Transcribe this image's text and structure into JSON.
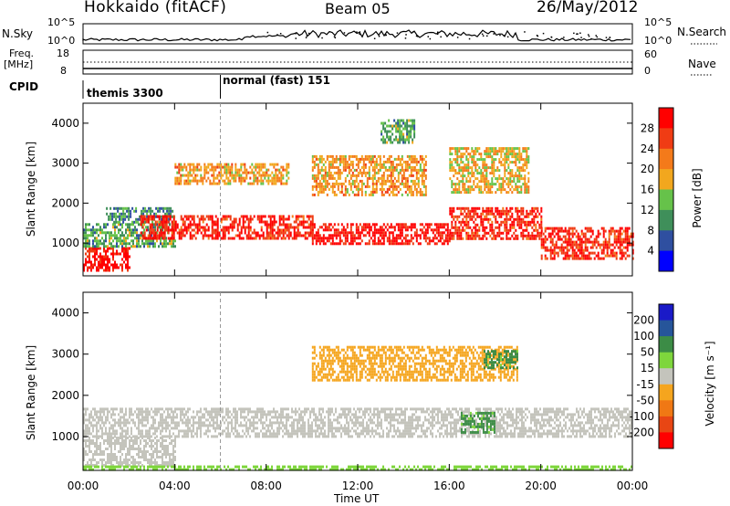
{
  "header": {
    "station": "Hokkaido (fitACF)",
    "beam": "Beam 05",
    "date": "26/May/2012"
  },
  "summary_panel": {
    "nsky_label": "N.Sky",
    "nsky_ticks": [
      "10^5",
      "10^0"
    ],
    "nsearch_label": "N.Search",
    "nsearch_ticks": [
      "10^5",
      "10^0"
    ],
    "freq_label": "Freq.",
    "freq_unit": "[MHz]",
    "freq_ticks": [
      "18",
      "8"
    ],
    "nave_label": "Nave",
    "nave_ticks": [
      "60",
      "0"
    ],
    "cpid_label": "CPID",
    "cpid_modes": [
      {
        "name": "themis 3300",
        "start_hour": 0
      },
      {
        "name": "normal (fast) 151",
        "start_hour": 6
      }
    ]
  },
  "colors": {
    "power_scale": [
      "#0000ff",
      "#2f4fa0",
      "#3f8f5a",
      "#66c24a",
      "#f2a71e",
      "#f47a1a",
      "#f03c14",
      "#ff0000"
    ],
    "velocity_scale": [
      "#1a1ac8",
      "#26559a",
      "#3c8c46",
      "#7ed63c",
      "#c4c4bc",
      "#f5a51e",
      "#f07814",
      "#e84614",
      "#ff0000"
    ]
  },
  "chart_data": [
    {
      "type": "heatmap",
      "title": "",
      "xlabel": "Time UT",
      "ylabel": "Slant Range [km]",
      "xlim": [
        0,
        24
      ],
      "ylim": [
        180,
        4500
      ],
      "x_ticks": [
        "00:00",
        "04:00",
        "08:00",
        "12:00",
        "16:00",
        "20:00",
        "00:00"
      ],
      "y_ticks": [
        1000,
        2000,
        3000,
        4000
      ],
      "colorbar": {
        "label": "Power [dB]",
        "range": [
          0,
          32
        ],
        "ticks": [
          4,
          8,
          12,
          16,
          20,
          24,
          28
        ]
      },
      "regions": [
        {
          "t0": 0.0,
          "t1": 2.0,
          "r_min": 300,
          "r_max": 900,
          "value": 30
        },
        {
          "t0": 0.0,
          "t1": 4.0,
          "r_min": 900,
          "r_max": 1500,
          "value": 12
        },
        {
          "t0": 1.0,
          "t1": 4.0,
          "r_min": 1500,
          "r_max": 1900,
          "value": 10
        },
        {
          "t0": 2.5,
          "t1": 10.0,
          "r_min": 1100,
          "r_max": 1700,
          "value": 28
        },
        {
          "t0": 10.0,
          "t1": 16.0,
          "r_min": 1000,
          "r_max": 1500,
          "value": 30
        },
        {
          "t0": 16.0,
          "t1": 20.0,
          "r_min": 1100,
          "r_max": 1900,
          "value": 28
        },
        {
          "t0": 20.0,
          "t1": 24.0,
          "r_min": 600,
          "r_max": 1400,
          "value": 28
        },
        {
          "t0": 4.0,
          "t1": 9.0,
          "r_min": 2500,
          "r_max": 3000,
          "value": 20
        },
        {
          "t0": 10.0,
          "t1": 15.0,
          "r_min": 2200,
          "r_max": 3200,
          "value": 20
        },
        {
          "t0": 16.0,
          "t1": 19.5,
          "r_min": 2300,
          "r_max": 3400,
          "value": 18
        },
        {
          "t0": 13.0,
          "t1": 14.5,
          "r_min": 3500,
          "r_max": 4100,
          "value": 12
        }
      ]
    },
    {
      "type": "heatmap",
      "title": "",
      "xlabel": "Time UT",
      "ylabel": "Slant Range [km]",
      "xlim": [
        0,
        24
      ],
      "ylim": [
        180,
        4500
      ],
      "x_ticks": [
        "00:00",
        "04:00",
        "08:00",
        "12:00",
        "16:00",
        "20:00",
        "00:00"
      ],
      "y_ticks": [
        1000,
        2000,
        3000,
        4000
      ],
      "colorbar": {
        "label": "Velocity [m s⁻¹]",
        "range": [
          -250,
          250
        ],
        "ticks": [
          200,
          100,
          50,
          15,
          -15,
          -50,
          -100,
          -200
        ]
      },
      "regions": [
        {
          "t0": 0.0,
          "t1": 24.0,
          "r_min": 1000,
          "r_max": 1700,
          "value": 0
        },
        {
          "t0": 0.0,
          "t1": 4.0,
          "r_min": 300,
          "r_max": 1000,
          "value": 0
        },
        {
          "t0": 16.5,
          "t1": 18.0,
          "r_min": 1100,
          "r_max": 1600,
          "value": 60
        },
        {
          "t0": 10.0,
          "t1": 19.0,
          "r_min": 2400,
          "r_max": 3200,
          "value": -30
        },
        {
          "t0": 17.5,
          "t1": 19.0,
          "r_min": 2700,
          "r_max": 3100,
          "value": 60
        },
        {
          "t0": 0.0,
          "t1": 24.0,
          "r_min": 180,
          "r_max": 300,
          "value": 30
        }
      ]
    }
  ]
}
